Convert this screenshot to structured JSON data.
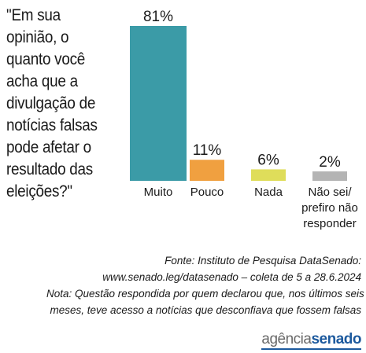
{
  "question": "\"Em sua opinião, o quanto você acha que a divulgação de notícias falsas pode afetar o resultado das eleições?\"",
  "chart_data": {
    "type": "bar",
    "categories": [
      [
        "Muito"
      ],
      [
        "Pouco"
      ],
      [
        "Nada"
      ],
      [
        "Não sei/",
        "prefiro não",
        "responder"
      ]
    ],
    "values": [
      81,
      11,
      6,
      2
    ],
    "value_labels": [
      "81%",
      "11%",
      "6%",
      "2%"
    ],
    "colors": [
      "#3b9ba7",
      "#f0a040",
      "#dfdd5a",
      "#b4b4b4"
    ],
    "ylim": [
      0,
      81
    ]
  },
  "footer": {
    "source_line1": "Fonte: Instituto de Pesquisa DataSenado:",
    "source_line2": "www.senado.leg/datasenado – coleta de 5 a 28.6.2024",
    "note_line1": "Nota: Questão respondida por quem declarou que, nos últimos seis",
    "note_line2": "meses, teve acesso a notícias que desconfiava que fossem falsas"
  },
  "logo": {
    "part1": "agência",
    "part2": "senado"
  }
}
